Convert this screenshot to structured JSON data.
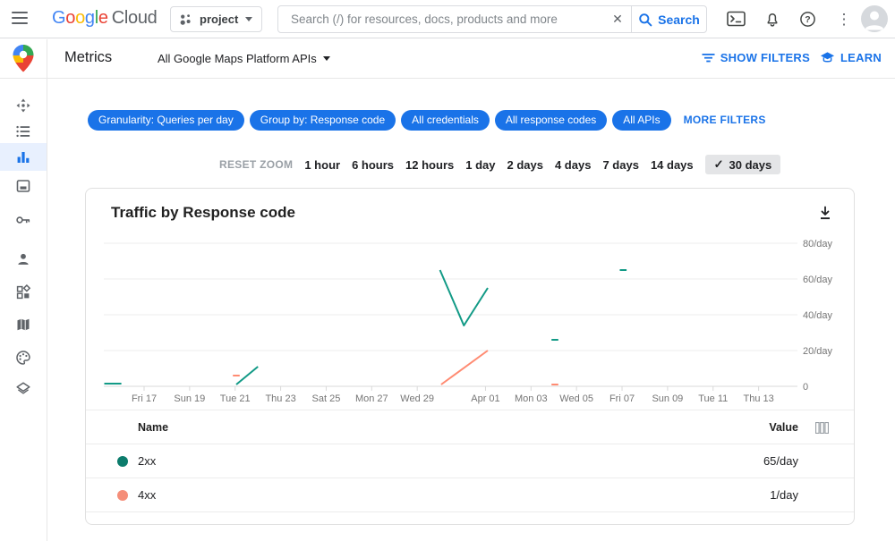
{
  "topbar": {
    "logo": {
      "brand": "Google",
      "brand_letter_colors": [
        "#4285F4",
        "#EA4335",
        "#FBBC05",
        "#4285F4",
        "#34A853",
        "#EA4335"
      ],
      "suffix": "Cloud"
    },
    "project_selector": {
      "label": "project"
    },
    "search": {
      "placeholder": "Search (/) for resources, docs, products and more",
      "clear_glyph": "✕",
      "button_label": "Search"
    },
    "more_glyph": "⋮"
  },
  "subheader": {
    "title": "Metrics",
    "scope_selector_label": "All Google Maps Platform APIs",
    "show_filters_label": "SHOW FILTERS",
    "learn_label": "LEARN"
  },
  "sidebar": {
    "items": [
      "overview",
      "apis",
      "metrics",
      "quotas",
      "credentials",
      "support",
      "widgets",
      "map-management",
      "map-styles",
      "datasets"
    ],
    "active": "metrics"
  },
  "filters": {
    "chips": [
      "Granularity: Queries per day",
      "Group by: Response code",
      "All credentials",
      "All response codes",
      "All APIs"
    ],
    "more_filters_label": "MORE FILTERS"
  },
  "time_range": {
    "reset_label": "RESET ZOOM",
    "options": [
      "1 hour",
      "6 hours",
      "12 hours",
      "1 day",
      "2 days",
      "4 days",
      "7 days",
      "14 days",
      "30 days"
    ],
    "selected": "30 days",
    "check_glyph": "✓"
  },
  "chart_card": {
    "title": "Traffic by Response code"
  },
  "chart_data": {
    "type": "line",
    "title": "Traffic by Response code",
    "unit": "queries per day",
    "legend_position": "table-below",
    "grid": true,
    "y_axis": {
      "tick_labels": [
        "80/day",
        "60/day",
        "40/day",
        "20/day",
        "0"
      ],
      "tick_values": [
        80,
        60,
        40,
        20,
        0
      ],
      "ylim": [
        0,
        86
      ]
    },
    "x_axis": {
      "day0": "Mar 15",
      "window": "30 days",
      "tick_labels": [
        "Fri 17",
        "Sun 19",
        "Tue 21",
        "Thu 23",
        "Sat 25",
        "Mon 27",
        "Wed 29",
        "Apr 01",
        "Mon 03",
        "Wed 05",
        "Fri 07",
        "Sun 09",
        "Tue 11",
        "Thu 13"
      ],
      "tick_day_offsets": [
        2,
        4,
        6,
        8,
        10,
        12,
        14,
        17,
        19,
        21,
        23,
        25,
        27,
        29
      ]
    },
    "series": [
      {
        "name": "2xx",
        "color": "#129a86",
        "swatch_color": "#0c7c6c",
        "current_value": "65/day",
        "segments": [
          [
            [
              0.25,
              1.5
            ],
            [
              1.0,
              1.5
            ]
          ],
          [
            [
              6.05,
              1
            ],
            [
              7.0,
              11
            ]
          ],
          [
            [
              15.0,
              65
            ],
            [
              16.05,
              34
            ],
            [
              17.1,
              55
            ]
          ],
          [
            [
              19.9,
              26
            ],
            [
              20.2,
              26
            ]
          ],
          [
            [
              22.9,
              65
            ],
            [
              23.2,
              65
            ]
          ]
        ]
      },
      {
        "name": "4xx",
        "color": "#ff8b72",
        "swatch_color": "#f58e79",
        "current_value": "1/day",
        "segments": [
          [
            [
              5.9,
              6
            ],
            [
              6.2,
              6
            ]
          ],
          [
            [
              15.05,
              1
            ],
            [
              17.1,
              20
            ]
          ],
          [
            [
              19.9,
              1
            ],
            [
              20.2,
              1
            ]
          ]
        ]
      }
    ]
  },
  "table": {
    "name_header": "Name",
    "value_header": "Value",
    "rows": [
      {
        "name": "2xx",
        "value": "65/day",
        "swatch": "#0c7c6c"
      },
      {
        "name": "4xx",
        "value": "1/day",
        "swatch": "#f58e79"
      }
    ]
  },
  "colors": {
    "accent_blue": "#1a73e8",
    "active_nav_bg": "#e8f0fe",
    "icon_gray": "#5f6368",
    "axis_text": "#757575",
    "gridline": "#eeeeee"
  }
}
